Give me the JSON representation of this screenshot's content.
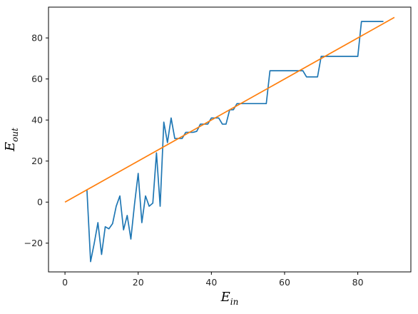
{
  "chart_data": {
    "type": "line",
    "xlabel": "E",
    "xlabel_sub": "in",
    "ylabel": "E",
    "ylabel_sub": "out",
    "xlim": [
      -4.5,
      94.5
    ],
    "ylim": [
      -34,
      95
    ],
    "xticks": [
      0,
      20,
      40,
      60,
      80
    ],
    "yticks": [
      -20,
      0,
      20,
      40,
      60,
      80
    ],
    "grid": false,
    "colors": {
      "series1": "#1f77b4",
      "series2": "#ff7f0e"
    },
    "series": [
      {
        "x": [
          6,
          7,
          8,
          9,
          10,
          11,
          12,
          13,
          14,
          15,
          16,
          17,
          18,
          19,
          20,
          21,
          22,
          23,
          24,
          25,
          26,
          27,
          28,
          29,
          30,
          31,
          32,
          33,
          34,
          35,
          36,
          37,
          38,
          39,
          40,
          41,
          42,
          43,
          44,
          45,
          46,
          47,
          48,
          49,
          50,
          51,
          52,
          53,
          54,
          55,
          56,
          57,
          58,
          59,
          60,
          61,
          62,
          63,
          64,
          65,
          66,
          67,
          68,
          69,
          70,
          71,
          72,
          73,
          74,
          75,
          76,
          77,
          78,
          79,
          80,
          81,
          82,
          83,
          84,
          85,
          86,
          87
        ],
        "y": [
          6,
          -29,
          -20,
          -10,
          -25.5,
          -12,
          -13,
          -10.5,
          -2,
          3,
          -13.5,
          -6.5,
          -18,
          -1,
          14,
          -10,
          3,
          -2,
          -0.5,
          24,
          -2,
          39,
          29,
          41,
          31,
          31,
          31,
          34,
          34,
          34,
          34.5,
          38,
          38,
          38,
          41,
          41,
          41,
          38,
          38,
          45,
          45,
          48,
          48,
          48,
          48,
          48,
          48,
          48,
          48,
          48,
          64,
          64,
          64,
          64,
          64,
          64,
          64,
          64,
          64,
          64,
          61,
          61,
          61,
          61,
          71,
          71,
          71,
          71,
          71,
          71,
          71,
          71,
          71,
          71,
          71,
          88,
          88,
          88,
          88,
          88,
          88,
          88
        ]
      },
      {
        "x": [
          0,
          90
        ],
        "y": [
          0,
          90
        ]
      }
    ]
  }
}
